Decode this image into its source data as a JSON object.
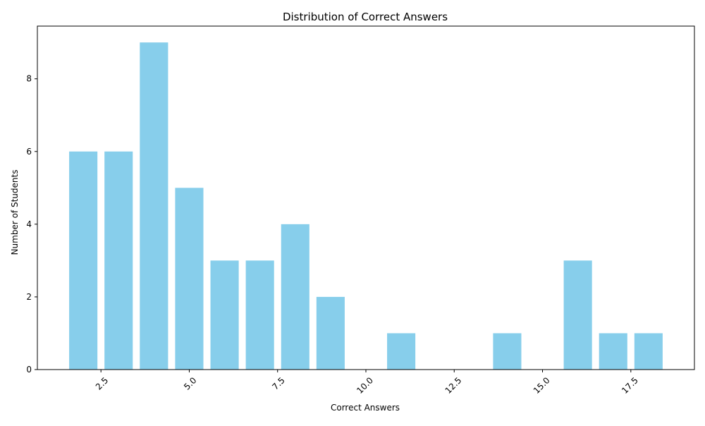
{
  "chart_data": {
    "type": "bar",
    "title": "Distribution of Correct Answers",
    "xlabel": "Correct Answers",
    "ylabel": "Number of Students",
    "bar_color": "#87ceeb",
    "x": [
      2,
      3,
      4,
      5,
      6,
      7,
      8,
      9,
      11,
      14,
      16,
      17,
      18
    ],
    "values": [
      6,
      6,
      9,
      5,
      3,
      3,
      4,
      2,
      1,
      1,
      3,
      1,
      1
    ],
    "bar_width": 0.8,
    "xlim": [
      0.7,
      19.3
    ],
    "ylim": [
      0,
      9.45
    ],
    "x_ticks": [
      2.5,
      5.0,
      7.5,
      10.0,
      12.5,
      15.0,
      17.5
    ],
    "x_tick_labels": [
      "2.5",
      "5.0",
      "7.5",
      "10.0",
      "12.5",
      "15.0",
      "17.5"
    ],
    "x_tick_rotation_deg": 45,
    "y_ticks": [
      0,
      2,
      4,
      6,
      8
    ],
    "y_tick_labels": [
      "0",
      "2",
      "4",
      "6",
      "8"
    ],
    "grid": false,
    "legend": "none"
  }
}
